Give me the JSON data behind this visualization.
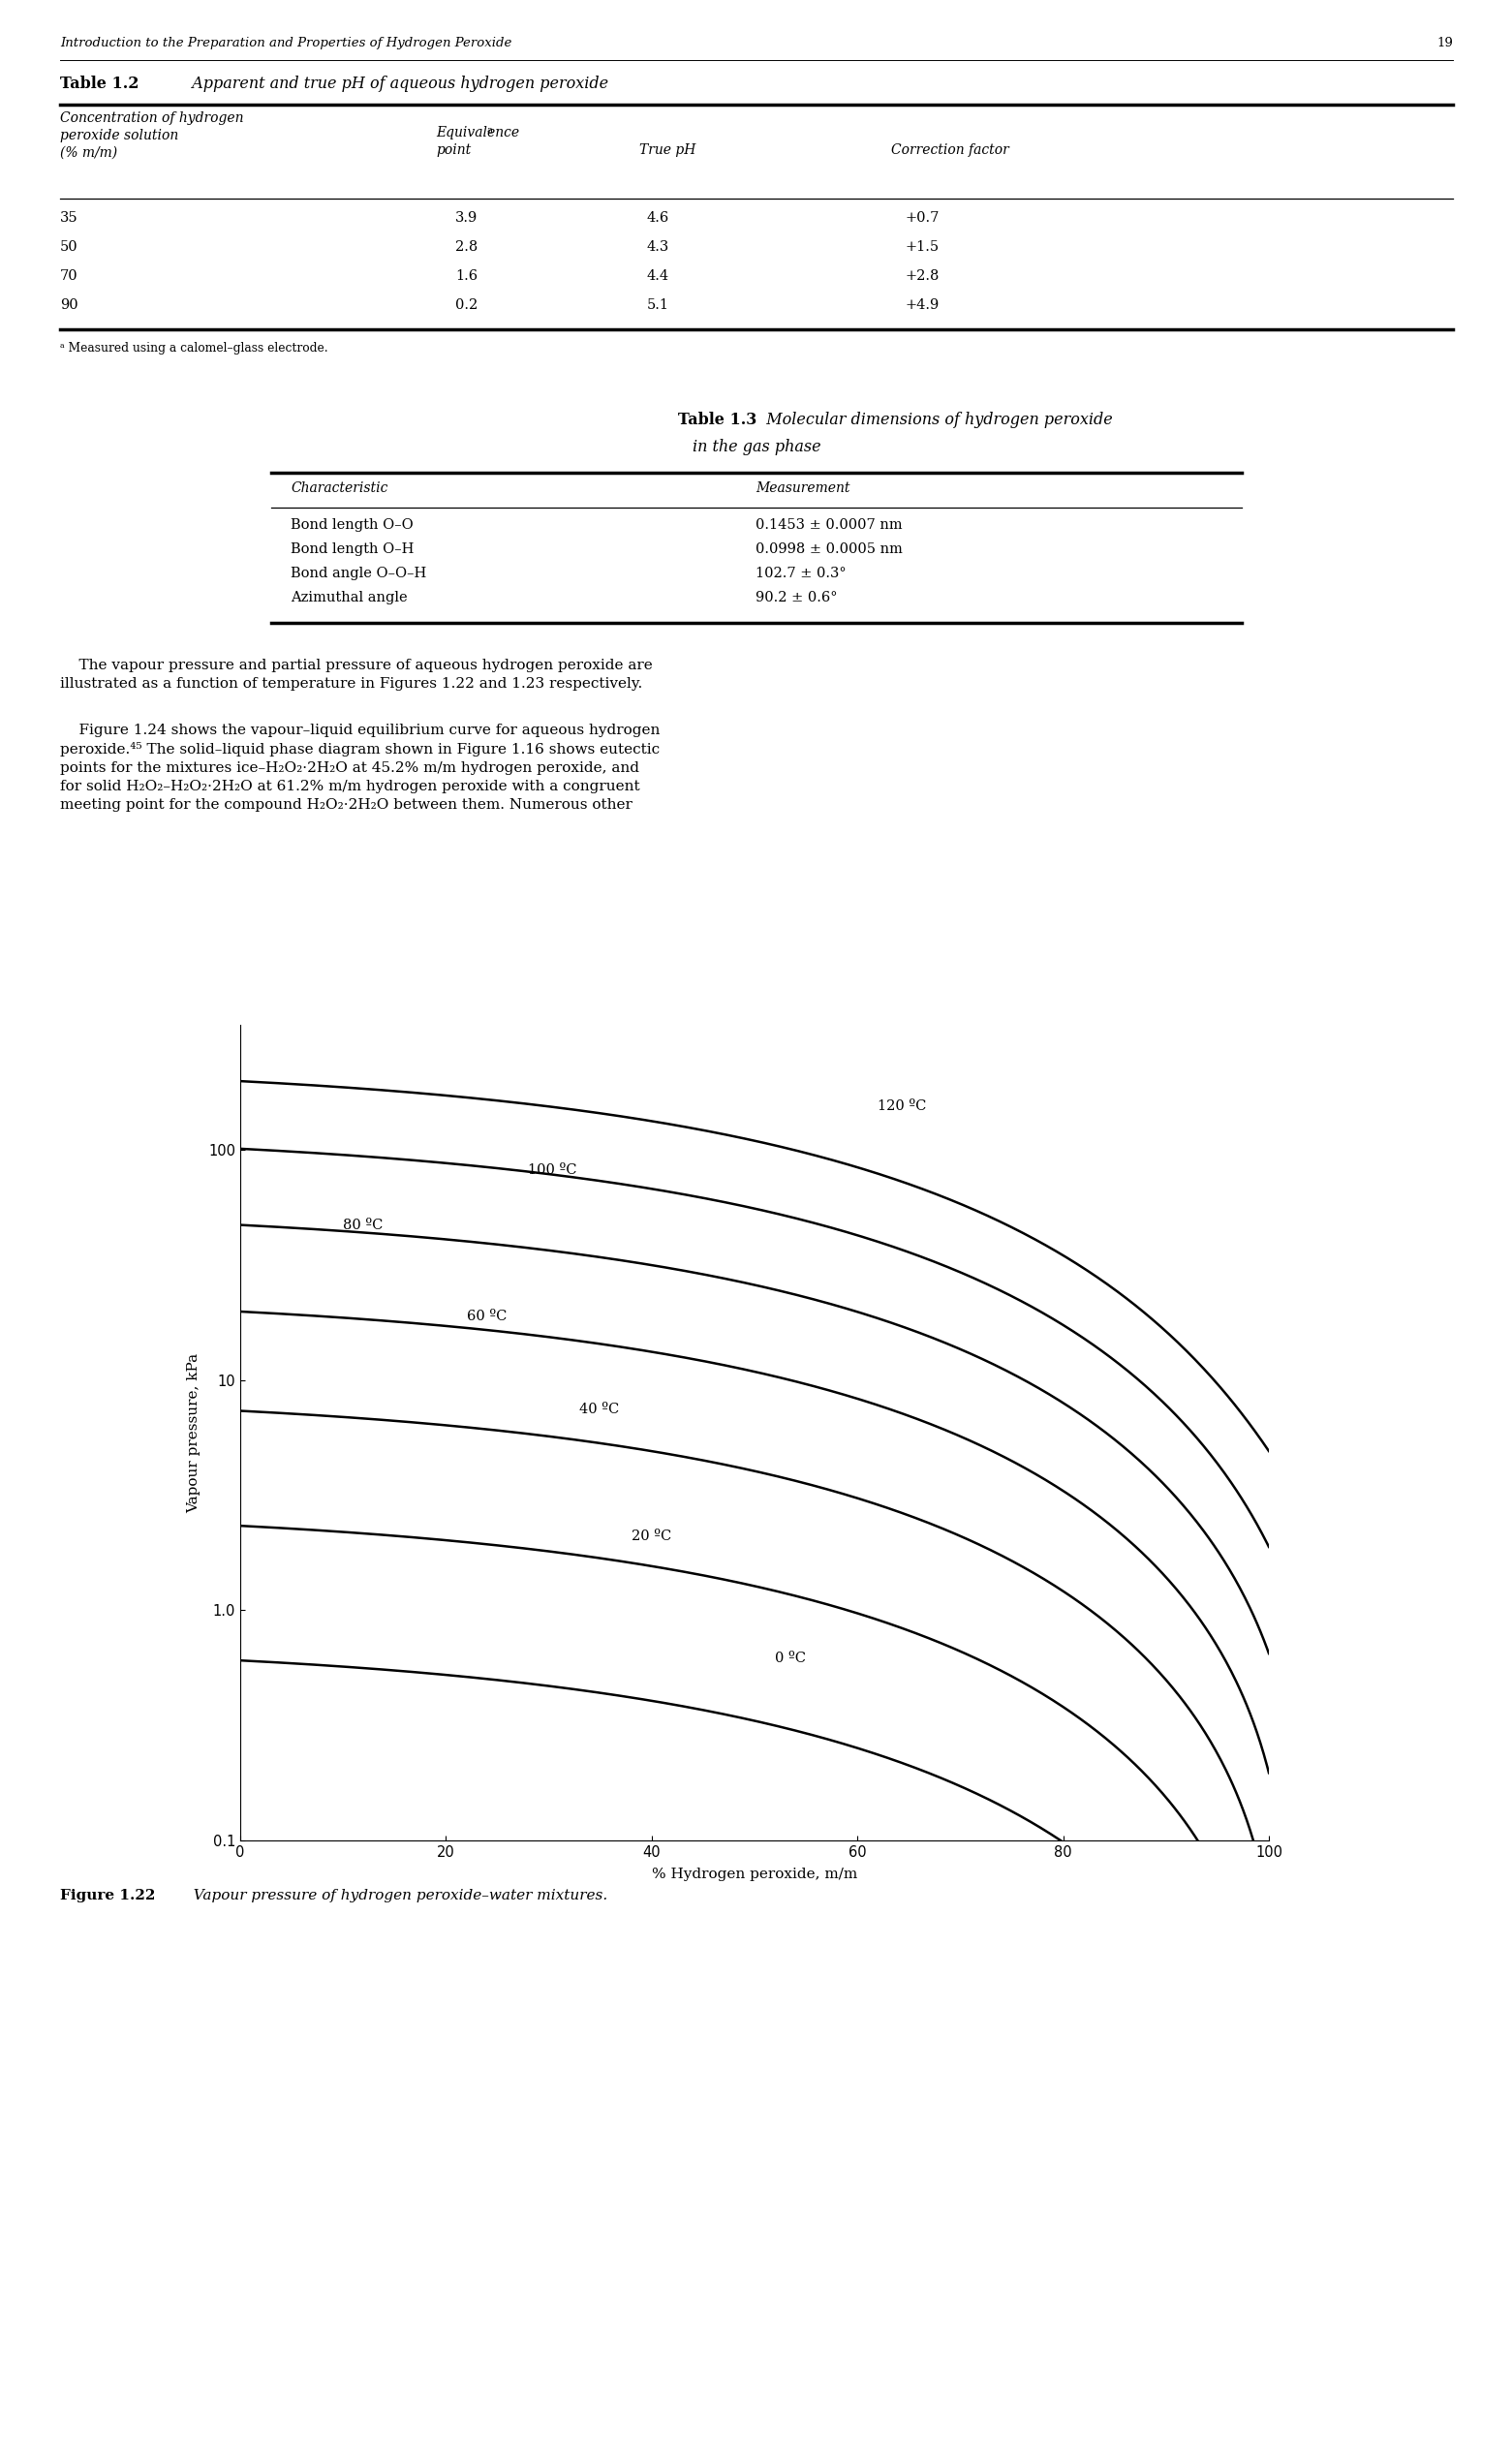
{
  "page_header": "Introduction to the Preparation and Properties of Hydrogen Peroxide",
  "page_number": "19",
  "table1_data": [
    [
      "35",
      "3.9",
      "4.6",
      "+0.7"
    ],
    [
      "50",
      "2.8",
      "4.3",
      "+1.5"
    ],
    [
      "70",
      "1.6",
      "4.4",
      "+2.8"
    ],
    [
      "90",
      "0.2",
      "5.1",
      "+4.9"
    ]
  ],
  "table1_footnote": "a Measured using a calomel–glass electrode.",
  "table2_data": [
    [
      "Bond length O–O",
      "0.1453 ± 0.0007 nm"
    ],
    [
      "Bond length O–H",
      "0.0998 ± 0.0005 nm"
    ],
    [
      "Bond angle O–O–H",
      "102.7 ± 0.3°"
    ],
    [
      "Azimuthal angle",
      "90.2 ± 0.6°"
    ]
  ],
  "xlabel": "% Hydrogen peroxide, m/m",
  "ylabel": "Vapour pressure, kPa",
  "fig_caption_bold": "Figure 1.22",
  "fig_caption_italic": "  Vapour pressure of hydrogen peroxide–water mixtures.",
  "background_color": "#ffffff",
  "curve_label_positions": [
    [
      52,
      0.62,
      "0 ºC"
    ],
    [
      38,
      2.1,
      "20 ºC"
    ],
    [
      33,
      7.5,
      "40 ºC"
    ],
    [
      22,
      19,
      "60 ºC"
    ],
    [
      10,
      47,
      "80 ºC"
    ],
    [
      28,
      82,
      "100 ºC"
    ],
    [
      62,
      155,
      "120 ºC"
    ]
  ]
}
